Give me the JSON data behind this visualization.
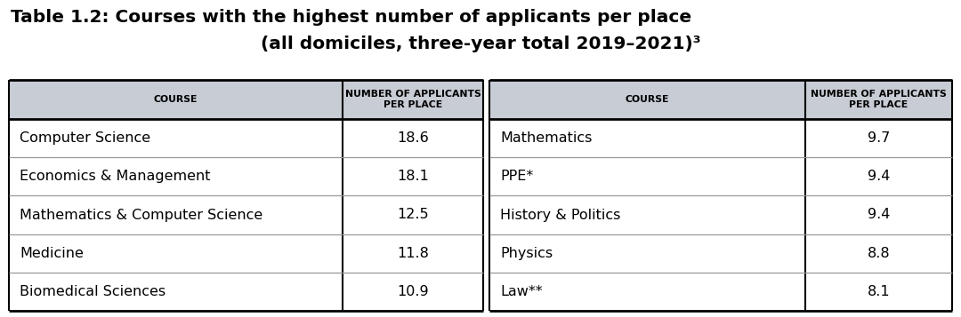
{
  "title_line1": "Table 1.2: Courses with the highest number of applicants per place",
  "title_line2": "(all domiciles, three-year total 2019–2021)³",
  "header_col1": "COURSE",
  "header_col2": "NUMBER OF APPLICANTS\nPER PLACE",
  "left_courses": [
    "Computer Science",
    "Economics & Management",
    "Mathematics & Computer Science",
    "Medicine",
    "Biomedical Sciences"
  ],
  "left_values": [
    "18.6",
    "18.1",
    "12.5",
    "11.8",
    "10.9"
  ],
  "right_courses": [
    "Mathematics",
    "PPE*",
    "History & Politics",
    "Physics",
    "Law**"
  ],
  "right_values": [
    "9.7",
    "9.4",
    "9.4",
    "8.8",
    "8.1"
  ],
  "header_bg": "#c8ccd4",
  "row_bg": "#ffffff",
  "title_color": "#000000",
  "text_color": "#000000",
  "bg_color": "#ffffff",
  "border_color": "#000000",
  "divider_color": "#999999",
  "title_fs": 14.5,
  "header_fs": 7.8,
  "data_fs": 11.5
}
